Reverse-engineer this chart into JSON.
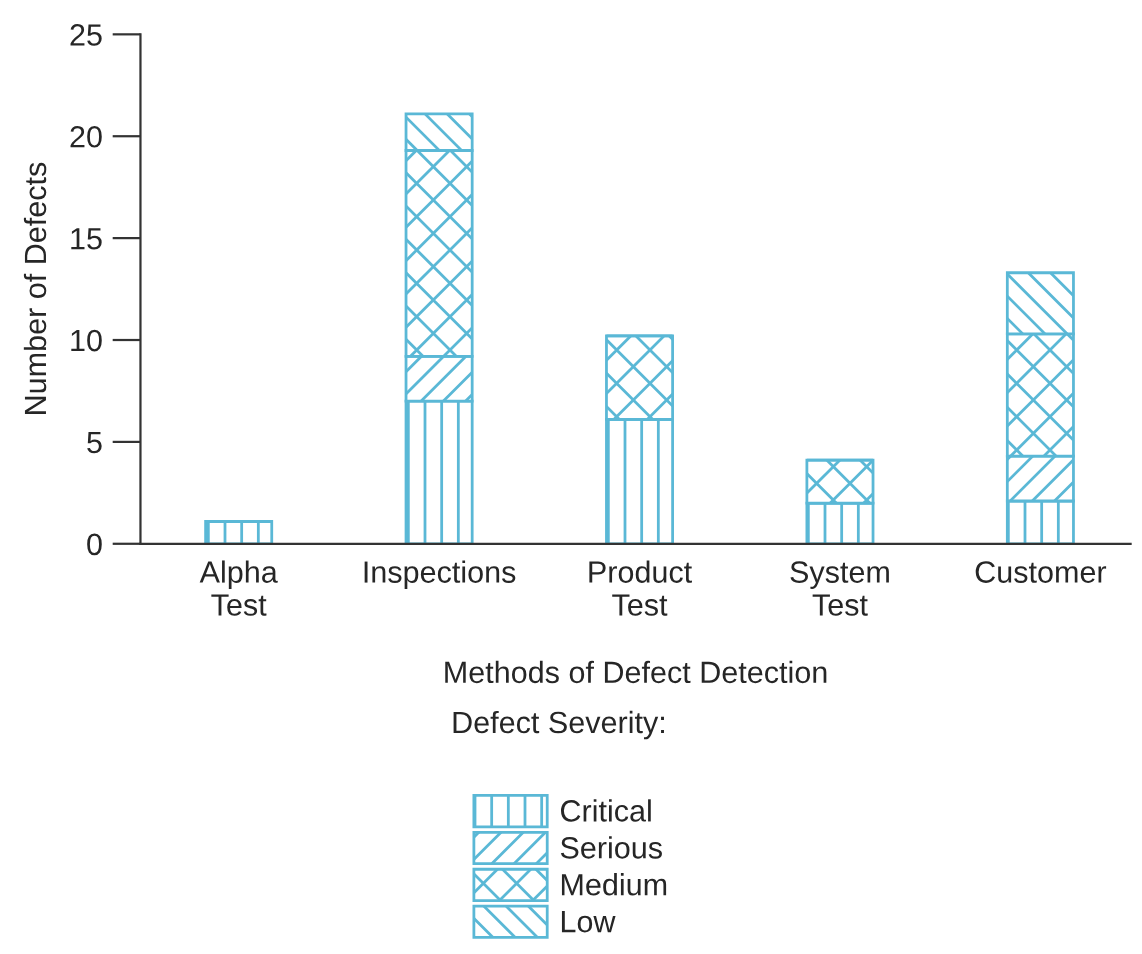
{
  "chart_data": {
    "type": "bar",
    "stacked": true,
    "categories": [
      "Alpha\nTest",
      "Inspections",
      "Product\nTest",
      "System\nTest",
      "Customer"
    ],
    "series": [
      {
        "name": "Critical",
        "color": "#5ab8d6",
        "values": [
          1.1,
          7.0,
          6.1,
          2.0,
          2.1
        ]
      },
      {
        "name": "Serious",
        "color": "#5ab8d6",
        "values": [
          0,
          2.2,
          0,
          0,
          2.2
        ]
      },
      {
        "name": "Medium",
        "color": "#5ab8d6",
        "values": [
          0,
          10.1,
          4.1,
          2.1,
          6.0
        ]
      },
      {
        "name": "Low",
        "color": "#5ab8d6",
        "values": [
          0,
          1.8,
          0,
          0,
          3.0
        ]
      }
    ],
    "xlabel": "Methods of Defect Detection",
    "ylabel": "Number of Defects",
    "legend_title": "Defect Severity:",
    "legend": "bottom",
    "ylim": [
      0,
      25
    ],
    "yticks": [
      0,
      5,
      10,
      15,
      20,
      25
    ],
    "grid": false
  }
}
